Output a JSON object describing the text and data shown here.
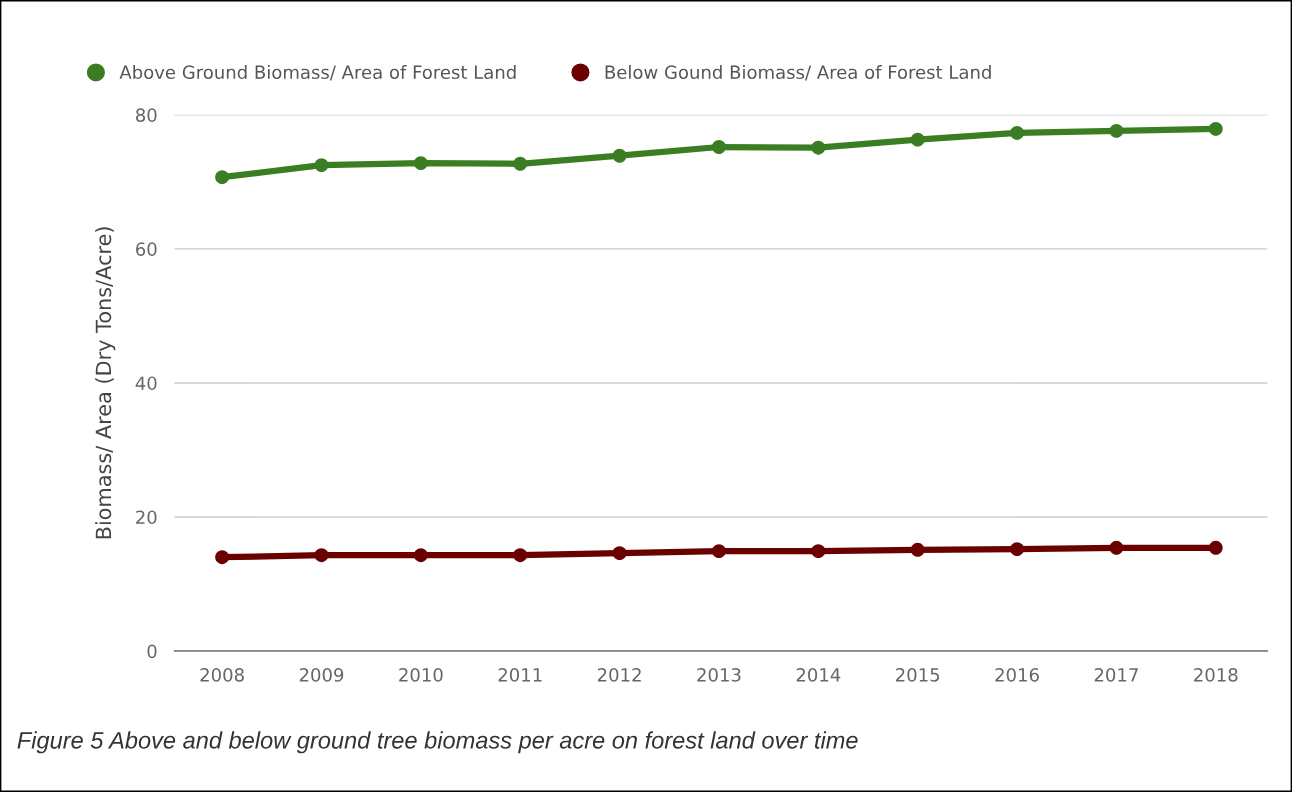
{
  "chart_data": {
    "type": "line",
    "ylabel": "Biomass/ Area (Dry Tons/Acre)",
    "categories": [
      "2008",
      "2009",
      "2010",
      "2011",
      "2012",
      "2013",
      "2014",
      "2015",
      "2016",
      "2017",
      "2018"
    ],
    "series": [
      {
        "name": "Above Ground Biomass/ Area of Forest Land",
        "color": "#3a7d22",
        "values": [
          70.7,
          72.5,
          72.8,
          72.7,
          73.9,
          75.2,
          75.1,
          76.3,
          77.3,
          77.6,
          77.9
        ]
      },
      {
        "name": "Below Gound Biomass/ Area of Forest Land",
        "color": "#6b0000",
        "values": [
          14.0,
          14.3,
          14.3,
          14.3,
          14.6,
          14.9,
          14.9,
          15.1,
          15.2,
          15.4,
          15.4
        ]
      }
    ],
    "ylim": [
      0,
      80
    ],
    "yticks": [
      0,
      20,
      40,
      60,
      80
    ],
    "grid": "y",
    "legend": "top",
    "marker": "circle",
    "line_style": "solid",
    "annotations": [
      "Figure 5 Above and below ground tree biomass per acre on forest land over time"
    ]
  }
}
